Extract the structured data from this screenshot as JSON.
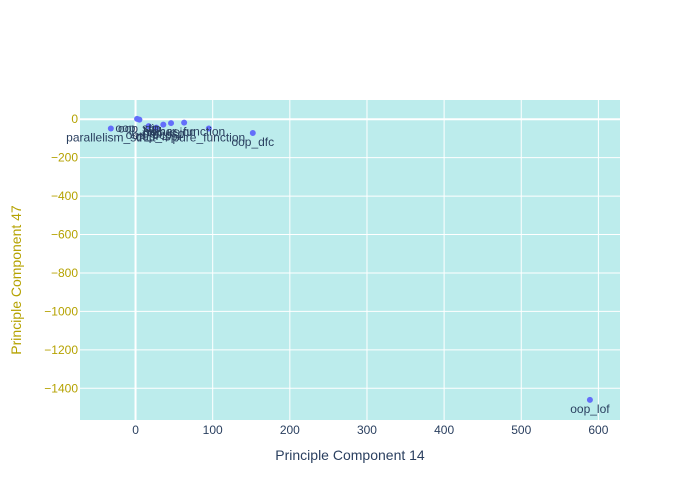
{
  "colors": {
    "plot_bg": "#bcecec",
    "grid": "#ffffff",
    "marker": "#636efa",
    "x_tick_text": "#2a3f5f",
    "y_tick_text": "#b5a200",
    "x_title_text": "#2a3f5f",
    "y_title_text": "#b5a200",
    "label_text": "#2a3f5f"
  },
  "chart_data": {
    "type": "scatter",
    "xlabel": "Principle Component 14",
    "ylabel": "Principle Component 47",
    "xlim": [
      -72,
      628
    ],
    "ylim": [
      -1565,
      100
    ],
    "xticks": [
      0,
      100,
      200,
      300,
      400,
      500,
      600
    ],
    "yticks": [
      0,
      -200,
      -400,
      -600,
      -800,
      -1000,
      -1200,
      -1400
    ],
    "grid": true,
    "legend": "none",
    "points": [
      {
        "x": 589,
        "y": -1460,
        "label": "oop_lof"
      },
      {
        "x": 152,
        "y": -72,
        "label": "oop_dfc"
      },
      {
        "x": 95,
        "y": -48,
        "label": "pure_function"
      },
      {
        "x": -32,
        "y": -48,
        "label": "parallelism_strict"
      },
      {
        "x": 63,
        "y": -18,
        "label": "higher_function"
      },
      {
        "x": 46,
        "y": -20,
        "label": "recursion"
      },
      {
        "x": 36,
        "y": -28,
        "label": "oop_isp"
      },
      {
        "x": 17,
        "y": -36,
        "label": "oop_ocp"
      },
      {
        "x": 27,
        "y": -44,
        "label": "oop_lsp"
      },
      {
        "x": 2,
        "y": 2,
        "label": "oop_srp"
      },
      {
        "x": 5,
        "y": -2,
        "label": "oop_dip"
      }
    ]
  }
}
